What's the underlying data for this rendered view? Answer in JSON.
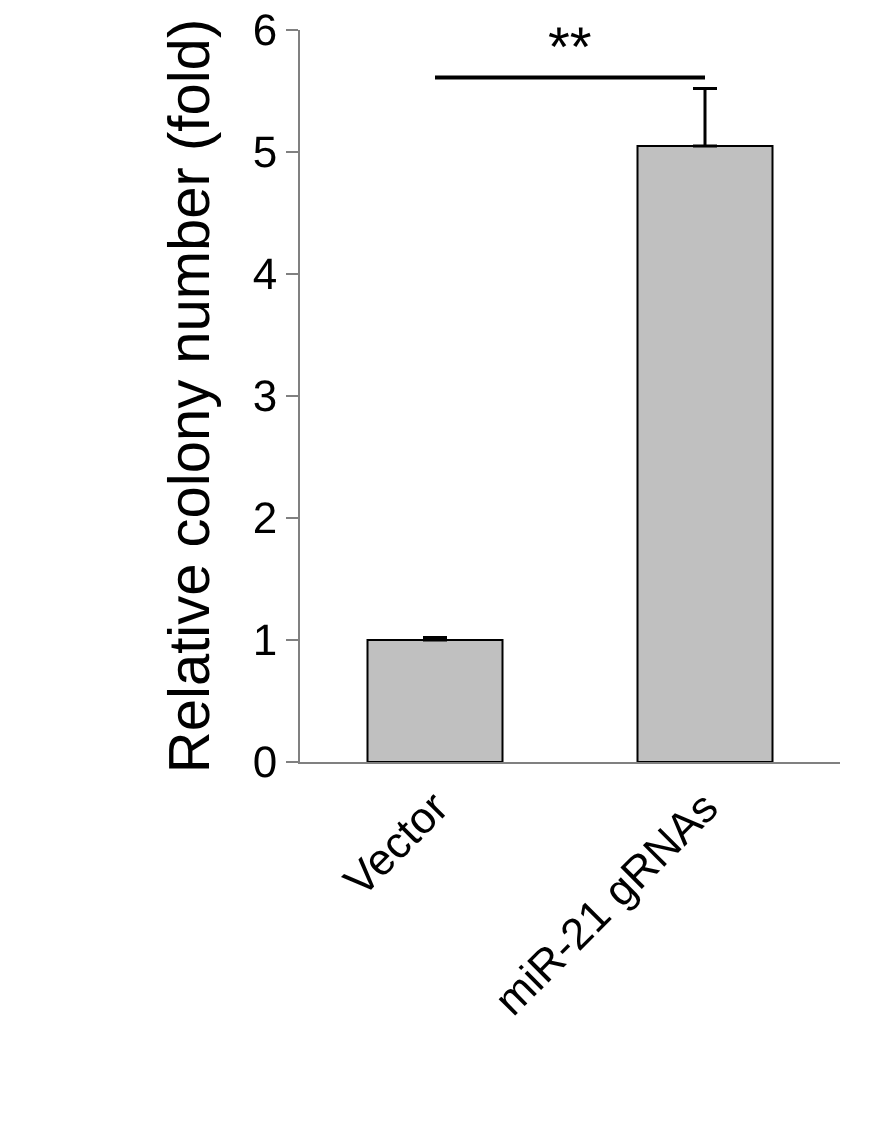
{
  "chart_data": {
    "type": "bar",
    "ylabel": "Relative colony number (fold)",
    "categories": [
      "Vector",
      "miR-21 gRNAs"
    ],
    "values": [
      1.0,
      5.05
    ],
    "errors": [
      [
        1.0,
        1.02
      ],
      [
        5.05,
        5.52
      ]
    ],
    "color": "#c0c0c0",
    "ylim": [
      0,
      6
    ],
    "yticks": [
      0,
      1,
      2,
      3,
      4,
      5,
      6
    ],
    "grid": false,
    "annotations": [
      "**"
    ]
  }
}
